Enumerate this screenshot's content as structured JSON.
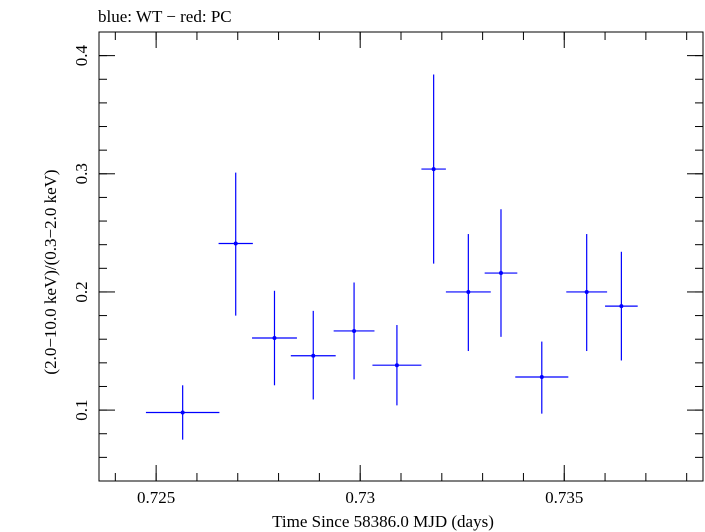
{
  "chart_data": {
    "type": "scatter",
    "title": "blue: WT − red: PC",
    "xlabel": "Time Since 58386.0 MJD (days)",
    "ylabel": "(2.0−10.0 keV)/(0.3−2.0 keV)",
    "xlim": [
      0.7236,
      0.7384
    ],
    "ylim": [
      0.04,
      0.42
    ],
    "x_ticks": [
      0.725,
      0.73,
      0.735
    ],
    "x_tick_labels": [
      "0.725",
      "0.73",
      "0.735"
    ],
    "y_ticks": [
      0.1,
      0.2,
      0.3,
      0.4
    ],
    "y_tick_labels": [
      "0.1",
      "0.2",
      "0.3",
      "0.4"
    ],
    "x_minor_step": 0.001,
    "y_minor_step": 0.02,
    "grid": false,
    "color": "#0000ff",
    "series": [
      {
        "points": [
          {
            "x": 0.72565,
            "y": 0.098,
            "xerr": 0.0009,
            "ylo": 0.075,
            "yhi": 0.121
          },
          {
            "x": 0.72695,
            "y": 0.241,
            "xerr": 0.00042,
            "ylo": 0.18,
            "yhi": 0.301
          },
          {
            "x": 0.7279,
            "y": 0.161,
            "xerr": 0.00055,
            "ylo": 0.121,
            "yhi": 0.201
          },
          {
            "x": 0.72885,
            "y": 0.146,
            "xerr": 0.00055,
            "ylo": 0.109,
            "yhi": 0.184
          },
          {
            "x": 0.72985,
            "y": 0.167,
            "xerr": 0.0005,
            "ylo": 0.126,
            "yhi": 0.208
          },
          {
            "x": 0.7309,
            "y": 0.138,
            "xerr": 0.0006,
            "ylo": 0.104,
            "yhi": 0.172
          },
          {
            "x": 0.7318,
            "y": 0.304,
            "xerr": 0.0003,
            "ylo": 0.224,
            "yhi": 0.384
          },
          {
            "x": 0.73265,
            "y": 0.2,
            "xerr": 0.00055,
            "ylo": 0.15,
            "yhi": 0.249
          },
          {
            "x": 0.73345,
            "y": 0.216,
            "xerr": 0.0004,
            "ylo": 0.162,
            "yhi": 0.27
          },
          {
            "x": 0.73445,
            "y": 0.128,
            "xerr": 0.00065,
            "ylo": 0.097,
            "yhi": 0.158
          },
          {
            "x": 0.73555,
            "y": 0.2,
            "xerr": 0.0005,
            "ylo": 0.15,
            "yhi": 0.249
          },
          {
            "x": 0.7364,
            "y": 0.188,
            "xerr": 0.0004,
            "ylo": 0.142,
            "yhi": 0.234
          }
        ]
      }
    ]
  }
}
